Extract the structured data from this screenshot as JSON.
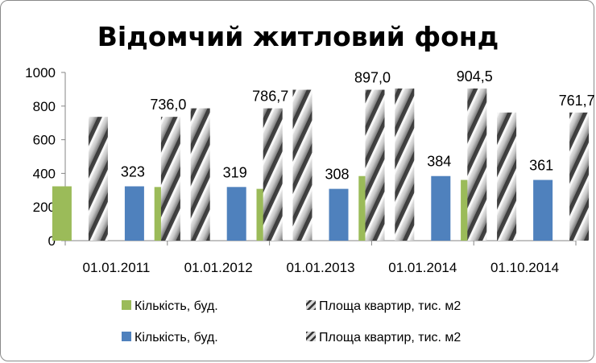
{
  "chart_data": {
    "type": "bar",
    "title": "Відомчий житловий фонд",
    "categories": [
      "01.01.2011",
      "01.01.2012",
      "01.01.2013",
      "01.01.2014",
      "01.10.2014"
    ],
    "ylim": [
      0,
      1000
    ],
    "yticks": [
      "0",
      "200",
      "400",
      "600",
      "800",
      "1000"
    ],
    "grid": false,
    "legend_position": "bottom",
    "series": [
      {
        "name": "Кількість, буд.",
        "values": [
          323,
          319,
          308,
          384,
          361
        ],
        "color": "#9bbb59",
        "style": "solid",
        "labels": [
          "",
          "",
          "",
          "",
          ""
        ]
      },
      {
        "name": "Площа квартир, тис. м2",
        "values": [
          736.0,
          786.7,
          897.0,
          904.5,
          761.7
        ],
        "color": "#b0b0b0",
        "style": "hatched",
        "labels": [
          "",
          "",
          "",
          "",
          ""
        ]
      },
      {
        "name": "Кількість, буд.",
        "values": [
          323,
          319,
          308,
          384,
          361
        ],
        "color": "#4f81bd",
        "style": "solid",
        "labels": [
          "323",
          "319",
          "308",
          "384",
          "361"
        ]
      },
      {
        "name": "Площа квартир, тис. м2",
        "values": [
          736.0,
          786.7,
          897.0,
          904.5,
          761.7
        ],
        "color": "#b0b0b0",
        "style": "hatched",
        "labels": [
          "736,0",
          "786,7",
          "897,0",
          "904,5",
          "761,7"
        ]
      }
    ],
    "legend": [
      {
        "label": "Кількість, буд.",
        "series_index": 0
      },
      {
        "label": "Площа квартир, тис. м2",
        "series_index": 1
      },
      {
        "label": "Кількість, буд.",
        "series_index": 2
      },
      {
        "label": "Площа квартир, тис. м2",
        "series_index": 3
      }
    ]
  }
}
